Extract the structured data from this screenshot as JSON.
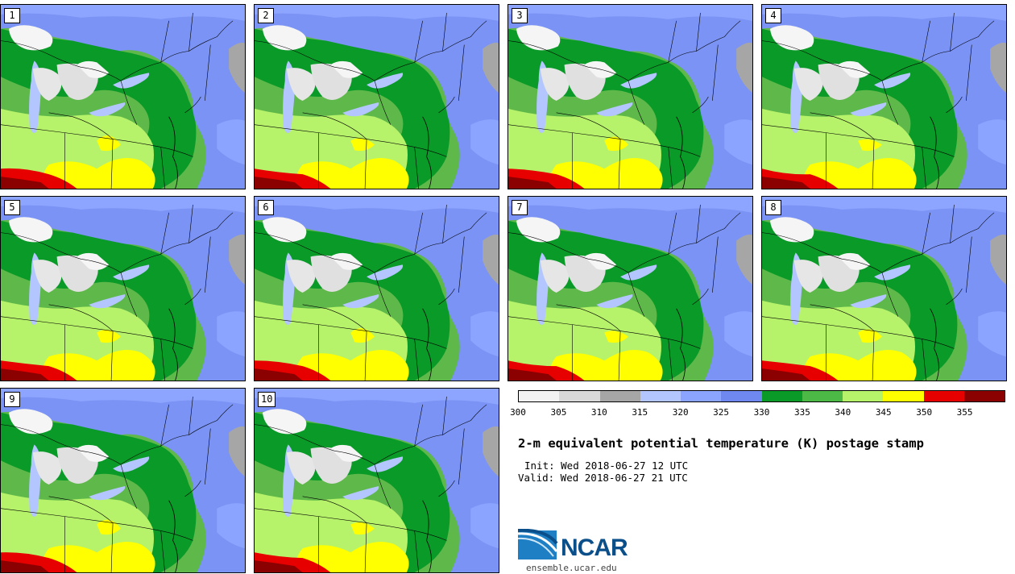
{
  "page": {
    "title": "2-m equivalent potential temperature (K) postage stamp",
    "init": "Init: Wed 2018-06-27 12 UTC",
    "valid": "Valid: Wed 2018-06-27 21 UTC"
  },
  "stamps": [
    {
      "label": "1"
    },
    {
      "label": "2"
    },
    {
      "label": "3"
    },
    {
      "label": "4"
    },
    {
      "label": "5"
    },
    {
      "label": "6"
    },
    {
      "label": "7"
    },
    {
      "label": "8"
    },
    {
      "label": "9"
    },
    {
      "label": "10"
    }
  ],
  "colorbar": {
    "unit": "K",
    "ticks": [
      "300",
      "305",
      "310",
      "315",
      "320",
      "325",
      "330",
      "335",
      "340",
      "345",
      "350",
      "355"
    ],
    "colors": [
      "#f2f2f2",
      "#d9d9d9",
      "#a6a6a6",
      "#b3c6ff",
      "#8aa4ff",
      "#6e88f0",
      "#0a9a28",
      "#4cb845",
      "#b6f26a",
      "#ffff00",
      "#e60000",
      "#8b0000"
    ]
  },
  "colors": {
    "land_green": "#5fb84a",
    "dark_green": "#0a9a28",
    "light_green": "#b6f26a",
    "blue": "#7a93f5",
    "light_blue": "#b3c6ff",
    "lake_white": "#f5f5f5",
    "yellow": "#ffff00",
    "red": "#e60000",
    "dark_red": "#8b0000",
    "gray": "#a6a6a6"
  },
  "logo": {
    "name": "NCAR",
    "url": "ensemble.ucar.edu"
  }
}
